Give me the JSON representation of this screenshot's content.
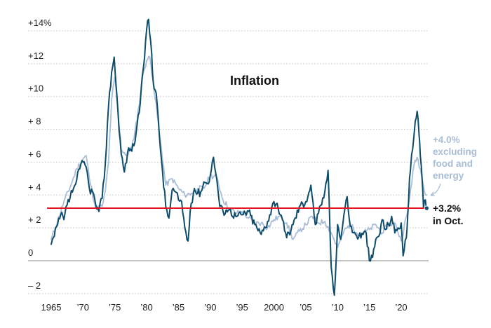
{
  "chart_data": {
    "type": "line",
    "title": "Inflation",
    "xlabel": "",
    "ylabel": "",
    "xlim": [
      1965,
      2024.3
    ],
    "ylim": [
      -2.5,
      15
    ],
    "x_ticks": [
      {
        "x": 1965,
        "label": "1965"
      },
      {
        "x": 1970,
        "label": "’70"
      },
      {
        "x": 1975,
        "label": "’75"
      },
      {
        "x": 1980,
        "label": "’80"
      },
      {
        "x": 1985,
        "label": "’85"
      },
      {
        "x": 1990,
        "label": "’90"
      },
      {
        "x": 1995,
        "label": "’95"
      },
      {
        "x": 2000,
        "label": "2000"
      },
      {
        "x": 2005,
        "label": "’05"
      },
      {
        "x": 2010,
        "label": "’10"
      },
      {
        "x": 2015,
        "label": "’15"
      },
      {
        "x": 2020,
        "label": "’20"
      }
    ],
    "y_ticks": [
      {
        "y": 14,
        "label": "+14%"
      },
      {
        "y": 12,
        "label": "+12"
      },
      {
        "y": 10,
        "label": "+10"
      },
      {
        "y": 8,
        "label": "+ 8"
      },
      {
        "y": 6,
        "label": "+ 6"
      },
      {
        "y": 4,
        "label": "+ 4"
      },
      {
        "y": 2,
        "label": "+ 2"
      },
      {
        "y": 0,
        "label": "0"
      },
      {
        "y": -2,
        "label": "– 2"
      }
    ],
    "grid": "horizontal dotted",
    "reference_line": {
      "y": 3.2,
      "color": "#e3161b"
    },
    "series": [
      {
        "name": "",
        "color": "#a9bdd6",
        "points": [
          [
            1965.0,
            1.3
          ],
          [
            1966.0,
            2.4
          ],
          [
            1967.0,
            3.6
          ],
          [
            1968.0,
            4.5
          ],
          [
            1969.0,
            5.6
          ],
          [
            1970.0,
            6.2
          ],
          [
            1970.5,
            6.4
          ],
          [
            1971.0,
            5.0
          ],
          [
            1972.0,
            3.2
          ],
          [
            1973.0,
            3.3
          ],
          [
            1973.5,
            4.2
          ],
          [
            1974.0,
            6.0
          ],
          [
            1974.5,
            9.8
          ],
          [
            1975.0,
            11.2
          ],
          [
            1975.5,
            9.0
          ],
          [
            1976.0,
            6.8
          ],
          [
            1977.0,
            6.4
          ],
          [
            1978.0,
            7.4
          ],
          [
            1979.0,
            10.0
          ],
          [
            1979.5,
            11.5
          ],
          [
            1980.0,
            12.2
          ],
          [
            1980.5,
            12.4
          ],
          [
            1981.0,
            11.0
          ],
          [
            1982.0,
            7.8
          ],
          [
            1983.0,
            4.6
          ],
          [
            1984.0,
            5.0
          ],
          [
            1985.0,
            4.4
          ],
          [
            1986.0,
            4.0
          ],
          [
            1987.0,
            4.1
          ],
          [
            1988.0,
            4.4
          ],
          [
            1989.0,
            4.4
          ],
          [
            1990.0,
            5.2
          ],
          [
            1991.0,
            5.1
          ],
          [
            1992.0,
            3.7
          ],
          [
            1993.0,
            3.2
          ],
          [
            1994.0,
            2.9
          ],
          [
            1995.0,
            3.0
          ],
          [
            1996.0,
            2.6
          ],
          [
            1997.0,
            2.3
          ],
          [
            1998.0,
            2.3
          ],
          [
            1999.0,
            2.0
          ],
          [
            2000.0,
            2.5
          ],
          [
            2001.0,
            2.7
          ],
          [
            2002.0,
            2.3
          ],
          [
            2003.0,
            1.3
          ],
          [
            2004.0,
            1.8
          ],
          [
            2005.0,
            2.2
          ],
          [
            2006.0,
            2.7
          ],
          [
            2007.0,
            2.3
          ],
          [
            2008.0,
            2.4
          ],
          [
            2009.0,
            1.7
          ],
          [
            2010.0,
            0.8
          ],
          [
            2011.0,
            1.8
          ],
          [
            2012.0,
            2.2
          ],
          [
            2013.0,
            1.7
          ],
          [
            2014.0,
            1.7
          ],
          [
            2015.0,
            1.9
          ],
          [
            2016.0,
            2.2
          ],
          [
            2017.0,
            1.7
          ],
          [
            2018.0,
            2.2
          ],
          [
            2019.0,
            2.3
          ],
          [
            2020.0,
            1.2
          ],
          [
            2021.0,
            3.0
          ],
          [
            2021.5,
            4.4
          ],
          [
            2022.0,
            5.8
          ],
          [
            2022.5,
            6.3
          ],
          [
            2023.0,
            5.6
          ],
          [
            2023.5,
            4.5
          ],
          [
            2024.0,
            4.0
          ]
        ]
      },
      {
        "name": "",
        "color": "#0e4c6b",
        "points": [
          [
            1965.0,
            1.0
          ],
          [
            1965.5,
            1.5
          ],
          [
            1966.0,
            2.2
          ],
          [
            1966.5,
            2.8
          ],
          [
            1967.0,
            2.5
          ],
          [
            1967.5,
            3.4
          ],
          [
            1968.0,
            3.9
          ],
          [
            1968.5,
            4.4
          ],
          [
            1969.0,
            4.9
          ],
          [
            1969.5,
            5.6
          ],
          [
            1970.0,
            6.0
          ],
          [
            1970.5,
            5.7
          ],
          [
            1971.0,
            4.4
          ],
          [
            1971.5,
            4.2
          ],
          [
            1972.0,
            3.4
          ],
          [
            1972.5,
            3.0
          ],
          [
            1973.0,
            3.8
          ],
          [
            1973.5,
            5.9
          ],
          [
            1974.0,
            9.4
          ],
          [
            1974.5,
            11.5
          ],
          [
            1974.9,
            12.4
          ],
          [
            1975.5,
            9.0
          ],
          [
            1976.0,
            6.5
          ],
          [
            1976.5,
            5.4
          ],
          [
            1977.0,
            6.6
          ],
          [
            1977.5,
            6.8
          ],
          [
            1978.0,
            7.0
          ],
          [
            1978.5,
            8.3
          ],
          [
            1979.0,
            9.6
          ],
          [
            1979.5,
            11.8
          ],
          [
            1980.0,
            14.1
          ],
          [
            1980.3,
            14.7
          ],
          [
            1980.8,
            12.6
          ],
          [
            1981.0,
            11.0
          ],
          [
            1981.5,
            10.2
          ],
          [
            1982.0,
            7.6
          ],
          [
            1982.5,
            5.4
          ],
          [
            1983.0,
            3.3
          ],
          [
            1983.5,
            2.6
          ],
          [
            1984.0,
            4.3
          ],
          [
            1984.5,
            4.2
          ],
          [
            1985.0,
            3.7
          ],
          [
            1985.5,
            3.6
          ],
          [
            1986.0,
            2.0
          ],
          [
            1986.5,
            1.2
          ],
          [
            1987.0,
            3.5
          ],
          [
            1987.5,
            4.4
          ],
          [
            1988.0,
            4.1
          ],
          [
            1988.5,
            4.2
          ],
          [
            1989.0,
            4.8
          ],
          [
            1989.5,
            4.7
          ],
          [
            1990.0,
            5.2
          ],
          [
            1990.5,
            6.3
          ],
          [
            1991.0,
            5.0
          ],
          [
            1991.5,
            3.3
          ],
          [
            1992.0,
            3.0
          ],
          [
            1992.5,
            3.1
          ],
          [
            1993.0,
            3.1
          ],
          [
            1994.0,
            2.7
          ],
          [
            1995.0,
            2.8
          ],
          [
            1996.0,
            3.0
          ],
          [
            1997.0,
            2.2
          ],
          [
            1998.0,
            1.6
          ],
          [
            1999.0,
            2.4
          ],
          [
            2000.0,
            3.6
          ],
          [
            2000.5,
            3.5
          ],
          [
            2001.0,
            2.8
          ],
          [
            2002.0,
            1.4
          ],
          [
            2003.0,
            2.2
          ],
          [
            2004.0,
            3.3
          ],
          [
            2005.0,
            3.6
          ],
          [
            2005.8,
            4.6
          ],
          [
            2006.5,
            2.2
          ],
          [
            2007.0,
            2.9
          ],
          [
            2007.5,
            3.4
          ],
          [
            2008.0,
            4.2
          ],
          [
            2008.5,
            5.5
          ],
          [
            2009.0,
            -0.4
          ],
          [
            2009.5,
            -2.1
          ],
          [
            2010.0,
            2.2
          ],
          [
            2010.5,
            1.3
          ],
          [
            2011.0,
            2.8
          ],
          [
            2011.5,
            3.9
          ],
          [
            2012.0,
            2.1
          ],
          [
            2012.5,
            1.7
          ],
          [
            2013.0,
            1.5
          ],
          [
            2014.0,
            1.6
          ],
          [
            2014.5,
            1.7
          ],
          [
            2015.0,
            0.0
          ],
          [
            2015.5,
            0.2
          ],
          [
            2016.0,
            1.3
          ],
          [
            2016.5,
            1.5
          ],
          [
            2017.0,
            2.5
          ],
          [
            2017.5,
            1.9
          ],
          [
            2018.0,
            2.2
          ],
          [
            2018.5,
            2.7
          ],
          [
            2019.0,
            1.7
          ],
          [
            2019.5,
            2.0
          ],
          [
            2020.0,
            2.3
          ],
          [
            2020.3,
            0.3
          ],
          [
            2020.8,
            1.4
          ],
          [
            2021.0,
            2.6
          ],
          [
            2021.3,
            5.0
          ],
          [
            2021.8,
            6.8
          ],
          [
            2022.2,
            8.5
          ],
          [
            2022.5,
            9.1
          ],
          [
            2022.8,
            7.7
          ],
          [
            2023.0,
            6.4
          ],
          [
            2023.3,
            4.9
          ],
          [
            2023.5,
            3.2
          ],
          [
            2023.8,
            3.7
          ],
          [
            2024.0,
            3.2
          ]
        ]
      }
    ],
    "annotations": {
      "core": {
        "lines": [
          "+4.0%",
          "excluding",
          "food and",
          "energy"
        ],
        "color": "#a9bdd6"
      },
      "headline": {
        "lines": [
          "+3.2%",
          "in Oct."
        ],
        "color": "#111111"
      }
    }
  }
}
